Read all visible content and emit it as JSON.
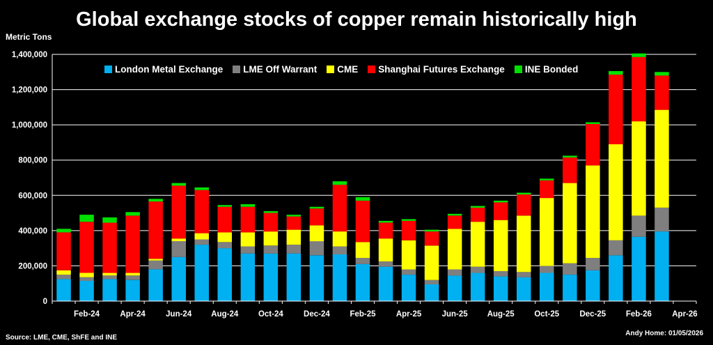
{
  "title": "Global exchange stocks of copper remain historically high",
  "ylabel": "Metric Tons",
  "source": "Source: LME, CME, ShFE and INE",
  "credit": "Andy Home: 01/05/2026",
  "legend": [
    {
      "name": "London Metal Exchange",
      "color": "#00b0f0"
    },
    {
      "name": "LME Off Warrant",
      "color": "#7f7f7f"
    },
    {
      "name": "CME",
      "color": "#ffff00"
    },
    {
      "name": "Shanghai Futures Exchange",
      "color": "#ff0000"
    },
    {
      "name": "INE Bonded",
      "color": "#00e000"
    }
  ],
  "chart_data": {
    "type": "bar",
    "stacked": true,
    "title": "Global exchange stocks of copper remain historically high",
    "ylabel": "Metric Tons",
    "xlabel": "",
    "ylim": [
      0,
      1400000
    ],
    "yticks": [
      0,
      200000,
      400000,
      600000,
      800000,
      1000000,
      1200000,
      1400000
    ],
    "ytick_labels": [
      "0",
      "200,000",
      "400,000",
      "600,000",
      "800,000",
      "1,000,000",
      "1,200,000",
      "1,400,000"
    ],
    "grid": true,
    "legend_position": "top",
    "categories": [
      "Jan-24",
      "Feb-24",
      "Mar-24",
      "Apr-24",
      "May-24",
      "Jun-24",
      "Jul-24",
      "Aug-24",
      "Sep-24",
      "Oct-24",
      "Nov-24",
      "Dec-24",
      "Jan-25",
      "Feb-25",
      "Mar-25",
      "Apr-25",
      "May-25",
      "Jun-25",
      "Jul-25",
      "Aug-25",
      "Sep-25",
      "Oct-25",
      "Nov-25",
      "Dec-25",
      "Jan-26",
      "Feb-26",
      "Mar-26",
      "Apr-26"
    ],
    "x_tick_labels": [
      "Feb-24",
      "Apr-24",
      "Jun-24",
      "Aug-24",
      "Oct-24",
      "Dec-24",
      "Feb-25",
      "Apr-25",
      "Jun-25",
      "Aug-25",
      "Oct-25",
      "Dec-25",
      "Feb-26",
      "Apr-26"
    ],
    "series": [
      {
        "name": "London Metal Exchange",
        "color": "#00b0f0",
        "values": [
          125000,
          115000,
          125000,
          120000,
          180000,
          250000,
          320000,
          300000,
          270000,
          270000,
          270000,
          260000,
          265000,
          210000,
          195000,
          150000,
          95000,
          145000,
          160000,
          140000,
          135000,
          160000,
          150000,
          175000,
          260000,
          365000,
          395000,
          null
        ]
      },
      {
        "name": "LME Off Warrant",
        "color": "#7f7f7f",
        "values": [
          25000,
          20000,
          20000,
          25000,
          50000,
          90000,
          30000,
          35000,
          40000,
          45000,
          50000,
          80000,
          45000,
          35000,
          30000,
          30000,
          25000,
          35000,
          35000,
          30000,
          30000,
          40000,
          65000,
          70000,
          85000,
          120000,
          135000,
          null
        ]
      },
      {
        "name": "CME",
        "color": "#ffff00",
        "values": [
          25000,
          25000,
          15000,
          15000,
          10000,
          15000,
          35000,
          55000,
          80000,
          80000,
          85000,
          90000,
          85000,
          90000,
          130000,
          165000,
          195000,
          230000,
          255000,
          290000,
          320000,
          385000,
          455000,
          525000,
          545000,
          535000,
          555000,
          null
        ]
      },
      {
        "name": "Shanghai Futures Exchange",
        "color": "#ff0000",
        "values": [
          215000,
          290000,
          285000,
          325000,
          325000,
          300000,
          245000,
          145000,
          145000,
          105000,
          75000,
          95000,
          265000,
          235000,
          90000,
          110000,
          80000,
          75000,
          80000,
          100000,
          120000,
          100000,
          145000,
          235000,
          395000,
          365000,
          195000,
          null
        ]
      },
      {
        "name": "INE Bonded",
        "color": "#00e000",
        "values": [
          20000,
          40000,
          30000,
          20000,
          15000,
          15000,
          15000,
          10000,
          15000,
          10000,
          10000,
          10000,
          20000,
          20000,
          10000,
          10000,
          10000,
          10000,
          10000,
          10000,
          10000,
          10000,
          10000,
          10000,
          20000,
          20000,
          20000,
          null
        ]
      }
    ]
  }
}
